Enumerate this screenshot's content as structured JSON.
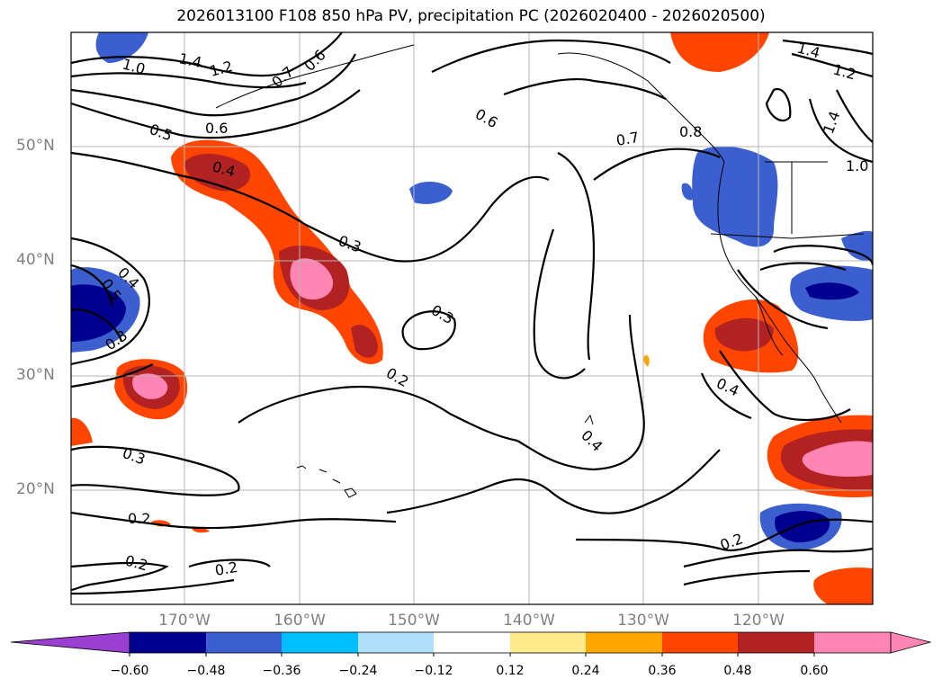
{
  "title": "2026013100 F108 850 hPa PV, precipitation PC (2026020400 - 2026020500)",
  "map": {
    "lat_labels": [
      "50°N",
      "40°N",
      "30°N",
      "20°N"
    ],
    "lon_labels": [
      "170°W",
      "160°W",
      "150°W",
      "140°W",
      "130°W",
      "120°W"
    ],
    "contour_labels": [
      "1.4",
      "1.0",
      "1.2",
      "0.7",
      "0.6",
      "0.5",
      "0.6",
      "0.4",
      "0.3",
      "0.4",
      "0.5",
      "0.3",
      "0.2",
      "0.3",
      "0.6",
      "0.7",
      "0.8",
      "1.4",
      "1.2",
      "1.4",
      "1.0",
      "0.4",
      "0.4",
      "0.3",
      "0.2",
      "0.2",
      "0.2",
      "0.2"
    ]
  },
  "colorbar": {
    "ticks": [
      "−0.60",
      "−0.48",
      "−0.36",
      "−0.24",
      "−0.12",
      "0.12",
      "0.24",
      "0.36",
      "0.48",
      "0.60"
    ],
    "colors": [
      "#9a3fd1",
      "#000090",
      "#3b5fcf",
      "#00bfff",
      "#b0e0fa",
      "#ffffff",
      "#ffeb8c",
      "#ffa500",
      "#ff4500",
      "#b22222",
      "#ff85b4",
      "#ff85b4"
    ]
  }
}
